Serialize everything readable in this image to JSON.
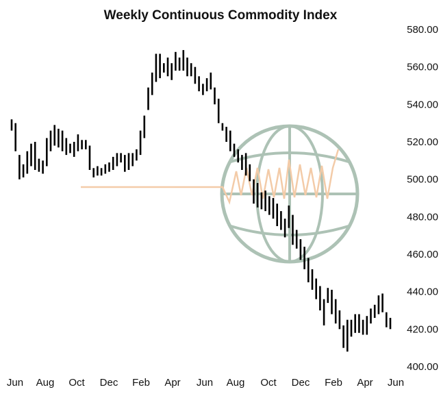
{
  "chart_data": {
    "type": "ohlc",
    "title": "Weekly Continuous Commodity Index",
    "xlabel": "",
    "ylabel": "",
    "ylim": [
      400,
      580
    ],
    "y_ticks": [
      "580.00",
      "560.00",
      "540.00",
      "520.00",
      "500.00",
      "480.00",
      "460.00",
      "440.00",
      "420.00",
      "400.00"
    ],
    "x_ticks": [
      "Jun",
      "Aug",
      "Oct",
      "Dec",
      "Feb",
      "Apr",
      "Jun",
      "Aug",
      "Oct",
      "Dec",
      "Feb",
      "Apr",
      "Jun"
    ],
    "y_axis_position": "right",
    "grid": false,
    "bars": [
      {
        "high": 532,
        "low": 526
      },
      {
        "high": 530,
        "low": 515
      },
      {
        "high": 513,
        "low": 500
      },
      {
        "high": 508,
        "low": 501
      },
      {
        "high": 515,
        "low": 503
      },
      {
        "high": 519,
        "low": 507
      },
      {
        "high": 520,
        "low": 505
      },
      {
        "high": 511,
        "low": 504
      },
      {
        "high": 510,
        "low": 503
      },
      {
        "high": 522,
        "low": 507
      },
      {
        "high": 526,
        "low": 515
      },
      {
        "high": 529,
        "low": 518
      },
      {
        "high": 527,
        "low": 517
      },
      {
        "high": 526,
        "low": 515
      },
      {
        "high": 522,
        "low": 513
      },
      {
        "high": 519,
        "low": 514
      },
      {
        "high": 520,
        "low": 512
      },
      {
        "high": 524,
        "low": 515
      },
      {
        "high": 521,
        "low": 516
      },
      {
        "high": 521,
        "low": 516
      },
      {
        "high": 518,
        "low": 505
      },
      {
        "high": 506,
        "low": 501
      },
      {
        "high": 507,
        "low": 502
      },
      {
        "high": 506,
        "low": 502
      },
      {
        "high": 508,
        "low": 503
      },
      {
        "high": 509,
        "low": 504
      },
      {
        "high": 512,
        "low": 505
      },
      {
        "high": 514,
        "low": 507
      },
      {
        "high": 514,
        "low": 509
      },
      {
        "high": 513,
        "low": 504
      },
      {
        "high": 514,
        "low": 505
      },
      {
        "high": 514,
        "low": 507
      },
      {
        "high": 516,
        "low": 510
      },
      {
        "high": 526,
        "low": 513
      },
      {
        "high": 534,
        "low": 522
      },
      {
        "high": 549,
        "low": 537
      },
      {
        "high": 557,
        "low": 545
      },
      {
        "high": 567,
        "low": 552
      },
      {
        "high": 567,
        "low": 554
      },
      {
        "high": 562,
        "low": 557
      },
      {
        "high": 565,
        "low": 555
      },
      {
        "high": 562,
        "low": 553
      },
      {
        "high": 568,
        "low": 558
      },
      {
        "high": 565,
        "low": 558
      },
      {
        "high": 569,
        "low": 558
      },
      {
        "high": 565,
        "low": 555
      },
      {
        "high": 562,
        "low": 555
      },
      {
        "high": 560,
        "low": 551
      },
      {
        "high": 555,
        "low": 547
      },
      {
        "high": 551,
        "low": 545
      },
      {
        "high": 554,
        "low": 547
      },
      {
        "high": 557,
        "low": 548
      },
      {
        "high": 549,
        "low": 540
      },
      {
        "high": 543,
        "low": 530
      },
      {
        "high": 530,
        "low": 526
      },
      {
        "high": 528,
        "low": 520
      },
      {
        "high": 526,
        "low": 515
      },
      {
        "high": 519,
        "low": 512
      },
      {
        "high": 516,
        "low": 509
      },
      {
        "high": 513,
        "low": 505
      },
      {
        "high": 514,
        "low": 502
      },
      {
        "high": 508,
        "low": 499
      },
      {
        "high": 500,
        "low": 487
      },
      {
        "high": 498,
        "low": 485
      },
      {
        "high": 493,
        "low": 484
      },
      {
        "high": 494,
        "low": 483
      },
      {
        "high": 491,
        "low": 481
      },
      {
        "high": 490,
        "low": 479
      },
      {
        "high": 487,
        "low": 475
      },
      {
        "high": 483,
        "low": 473
      },
      {
        "high": 479,
        "low": 469
      },
      {
        "high": 486,
        "low": 474
      },
      {
        "high": 481,
        "low": 465
      },
      {
        "high": 473,
        "low": 463
      },
      {
        "high": 468,
        "low": 457
      },
      {
        "high": 464,
        "low": 452
      },
      {
        "high": 458,
        "low": 445
      },
      {
        "high": 452,
        "low": 441
      },
      {
        "high": 447,
        "low": 436
      },
      {
        "high": 443,
        "low": 430
      },
      {
        "high": 436,
        "low": 422
      },
      {
        "high": 442,
        "low": 434
      },
      {
        "high": 441,
        "low": 428
      },
      {
        "high": 436,
        "low": 423
      },
      {
        "high": 430,
        "low": 420
      },
      {
        "high": 422,
        "low": 410
      },
      {
        "high": 425,
        "low": 408
      },
      {
        "high": 425,
        "low": 416
      },
      {
        "high": 428,
        "low": 418
      },
      {
        "high": 428,
        "low": 418
      },
      {
        "high": 425,
        "low": 417
      },
      {
        "high": 427,
        "low": 417
      },
      {
        "high": 431,
        "low": 423
      },
      {
        "high": 433,
        "low": 426
      },
      {
        "high": 438,
        "low": 428
      },
      {
        "high": 439,
        "low": 429
      },
      {
        "high": 429,
        "low": 421
      },
      {
        "high": 426,
        "low": 420
      }
    ],
    "x_start_month": "2014-06",
    "months_span": 24
  },
  "watermark": {
    "icon": "globe-icon",
    "globe_color": "#a9bfb2",
    "spark_color": "#f3c9a4"
  },
  "colors": {
    "bar": "#000000",
    "axis_text": "#111111",
    "background": "#ffffff"
  }
}
